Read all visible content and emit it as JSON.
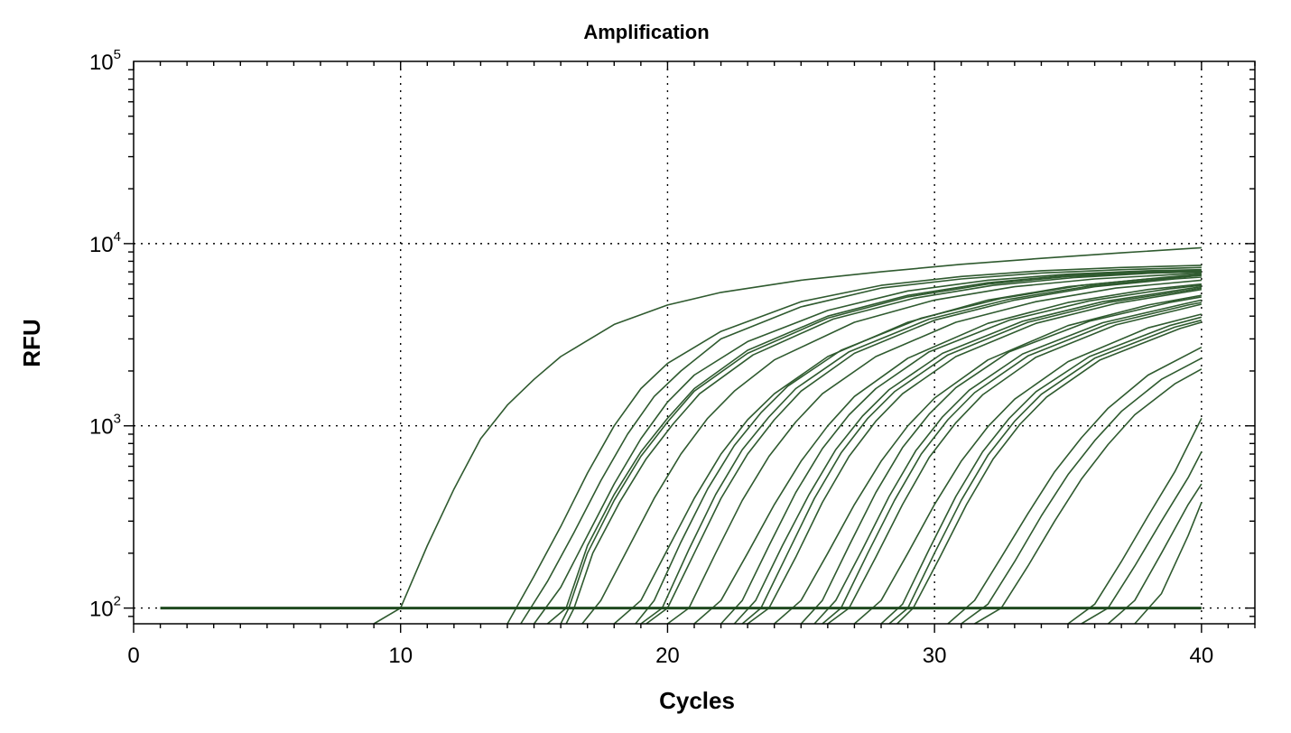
{
  "chart_data": {
    "type": "line",
    "title": "Amplification",
    "xlabel": "Cycles",
    "ylabel": "RFU",
    "xlim": [
      0,
      42
    ],
    "ylim": [
      82,
      100000
    ],
    "yscale": "log",
    "xticks": [
      "0",
      "10",
      "20",
      "30",
      "40"
    ],
    "yticks": [
      {
        "base": "10",
        "exp": "2",
        "value": 100
      },
      {
        "base": "10",
        "exp": "3",
        "value": 1000
      },
      {
        "base": "10",
        "exp": "4",
        "value": 10000
      },
      {
        "base": "10",
        "exp": "5",
        "value": 100000
      }
    ],
    "grid": true,
    "grid_x": [
      10,
      20,
      30,
      40
    ],
    "grid_y": [
      100,
      1000,
      10000
    ],
    "line_color": "#2f5a2f",
    "threshold": {
      "value": 100,
      "x_start": 1,
      "x_end": 40,
      "color": "#1f4a1f"
    },
    "series_note": "",
    "series": [
      {
        "x": [
          9,
          10,
          11,
          12,
          13,
          14,
          15,
          16,
          18,
          20,
          22,
          25,
          28,
          31,
          34,
          37,
          40
        ],
        "values": [
          82,
          100,
          220,
          450,
          850,
          1300,
          1800,
          2400,
          3600,
          4600,
          5400,
          6300,
          7000,
          7700,
          8300,
          8900,
          9500
        ]
      },
      {
        "x": [
          14,
          15,
          16,
          17,
          18,
          19,
          20,
          22,
          25,
          28,
          31,
          34,
          37,
          40
        ],
        "values": [
          82,
          150,
          280,
          550,
          1000,
          1600,
          2200,
          3300,
          4800,
          5900,
          6600,
          7100,
          7400,
          7600
        ]
      },
      {
        "x": [
          14.5,
          15.5,
          16.5,
          17.5,
          18.5,
          19.5,
          20.5,
          22,
          25,
          28,
          31,
          34,
          37,
          40
        ],
        "values": [
          82,
          140,
          260,
          500,
          900,
          1450,
          2000,
          3000,
          4500,
          5700,
          6400,
          6900,
          7200,
          7400
        ]
      },
      {
        "x": [
          15,
          16,
          17,
          18,
          19,
          20,
          21,
          23,
          26,
          29,
          32,
          35,
          38,
          40
        ],
        "values": [
          82,
          130,
          250,
          480,
          850,
          1350,
          1900,
          2900,
          4300,
          5500,
          6300,
          6800,
          7100,
          7200
        ]
      },
      {
        "x": [
          15.5,
          16.2,
          17,
          18,
          19,
          20,
          21,
          23,
          26,
          29,
          32,
          35,
          38,
          40
        ],
        "values": [
          82,
          100,
          220,
          420,
          720,
          1100,
          1600,
          2600,
          4000,
          5200,
          6100,
          6700,
          7000,
          7100
        ]
      },
      {
        "x": [
          16,
          16.3,
          17,
          18,
          19,
          20,
          21,
          23,
          26,
          29,
          32,
          35,
          38,
          40
        ],
        "values": [
          82,
          100,
          200,
          390,
          680,
          1050,
          1550,
          2500,
          3900,
          5100,
          6000,
          6600,
          6900,
          7000
        ]
      },
      {
        "x": [
          16.2,
          16.5,
          17.2,
          18.2,
          19.2,
          20.2,
          21.2,
          23.2,
          26.2,
          29.2,
          32.2,
          35.2,
          38.2,
          40
        ],
        "values": [
          82,
          100,
          200,
          380,
          660,
          1020,
          1500,
          2450,
          3850,
          5000,
          5900,
          6500,
          6900,
          7000
        ]
      },
      {
        "x": [
          16.8,
          17.5,
          18.5,
          19.5,
          20.5,
          21.5,
          22.5,
          24,
          27,
          30,
          33,
          36,
          40
        ],
        "values": [
          82,
          110,
          210,
          400,
          700,
          1100,
          1550,
          2300,
          3700,
          4900,
          5800,
          6400,
          6900
        ]
      },
      {
        "x": [
          18,
          19,
          20,
          21,
          22,
          23,
          24,
          26,
          29,
          32,
          35,
          38,
          40
        ],
        "values": [
          82,
          110,
          210,
          400,
          700,
          1080,
          1500,
          2400,
          3700,
          4900,
          5800,
          6400,
          6700
        ]
      },
      {
        "x": [
          18.8,
          19.5,
          20.5,
          21.5,
          22.5,
          23.5,
          24.5,
          26.5,
          29.5,
          32.5,
          35.5,
          38.5,
          40
        ],
        "values": [
          82,
          110,
          230,
          450,
          780,
          1180,
          1650,
          2600,
          3900,
          5000,
          5900,
          6500,
          6800
        ]
      },
      {
        "x": [
          19,
          19.8,
          20.8,
          21.8,
          22.8,
          23.8,
          24.8,
          26.8,
          29.8,
          32.8,
          35.8,
          38.8,
          40
        ],
        "values": [
          82,
          100,
          210,
          420,
          740,
          1120,
          1600,
          2550,
          3850,
          4950,
          5850,
          6450,
          6700
        ]
      },
      {
        "x": [
          19.2,
          20,
          21,
          22,
          23,
          24,
          25,
          27,
          30,
          33,
          36,
          39,
          40
        ],
        "values": [
          82,
          100,
          200,
          400,
          700,
          1080,
          1550,
          2500,
          3800,
          4900,
          5800,
          6400,
          6550
        ]
      },
      {
        "x": [
          20,
          20.8,
          21.8,
          22.8,
          23.8,
          24.8,
          25.8,
          27.8,
          30.8,
          33.8,
          36.8,
          40
        ],
        "values": [
          82,
          100,
          200,
          390,
          680,
          1050,
          1500,
          2400,
          3700,
          4800,
          5700,
          6300
        ]
      },
      {
        "x": [
          21,
          22,
          23,
          24,
          25,
          26,
          27,
          29,
          32,
          35,
          38,
          40
        ],
        "values": [
          82,
          110,
          200,
          370,
          640,
          1000,
          1450,
          2350,
          3650,
          4750,
          5600,
          6000
        ]
      },
      {
        "x": [
          22,
          22.8,
          23.8,
          24.8,
          25.8,
          26.8,
          27.8,
          29.8,
          32.8,
          35.8,
          38.8,
          40
        ],
        "values": [
          82,
          110,
          220,
          430,
          750,
          1150,
          1600,
          2550,
          3800,
          4850,
          5650,
          5900
        ]
      },
      {
        "x": [
          22.5,
          23.3,
          24.3,
          25.3,
          26.3,
          27.3,
          28.3,
          30.3,
          33.3,
          36.3,
          39.3,
          40
        ],
        "values": [
          82,
          110,
          220,
          420,
          740,
          1130,
          1580,
          2500,
          3750,
          4800,
          5600,
          5800
        ]
      },
      {
        "x": [
          22.8,
          23.5,
          24.5,
          25.5,
          26.5,
          27.5,
          28.5,
          30.5,
          33.5,
          36.5,
          39.5,
          40
        ],
        "values": [
          82,
          100,
          200,
          400,
          710,
          1100,
          1540,
          2450,
          3700,
          4750,
          5550,
          5700
        ]
      },
      {
        "x": [
          23,
          23.8,
          24.8,
          25.8,
          26.8,
          27.8,
          28.8,
          30.8,
          33.8,
          36.8,
          40
        ],
        "values": [
          82,
          100,
          190,
          380,
          680,
          1060,
          1500,
          2400,
          3650,
          4700,
          5600
        ]
      },
      {
        "x": [
          24,
          25,
          26,
          27,
          28,
          29,
          30,
          32,
          35,
          38,
          40
        ],
        "values": [
          82,
          110,
          200,
          370,
          640,
          1000,
          1420,
          2300,
          3550,
          4600,
          5200
        ]
      },
      {
        "x": [
          25,
          25.8,
          26.8,
          27.8,
          28.8,
          29.8,
          30.8,
          32.8,
          35.8,
          38.8,
          40
        ],
        "values": [
          82,
          110,
          220,
          430,
          760,
          1160,
          1620,
          2550,
          3750,
          4750,
          5100
        ]
      },
      {
        "x": [
          25.5,
          26.3,
          27.3,
          28.3,
          29.3,
          30.3,
          31.3,
          33.3,
          36.3,
          39.3,
          40
        ],
        "values": [
          82,
          110,
          210,
          410,
          730,
          1120,
          1570,
          2480,
          3680,
          4650,
          4900
        ]
      },
      {
        "x": [
          25.8,
          26.5,
          27.5,
          28.5,
          29.5,
          30.5,
          31.5,
          33.5,
          36.5,
          39.5,
          40
        ],
        "values": [
          82,
          100,
          200,
          390,
          700,
          1080,
          1520,
          2420,
          3620,
          4600,
          4750
        ]
      },
      {
        "x": [
          26,
          26.8,
          27.8,
          28.8,
          29.8,
          30.8,
          31.8,
          33.8,
          36.8,
          40
        ],
        "values": [
          82,
          100,
          190,
          370,
          670,
          1040,
          1480,
          2380,
          3580,
          4650
        ]
      },
      {
        "x": [
          27,
          28,
          29,
          30,
          31,
          32,
          33,
          35,
          38,
          40
        ],
        "values": [
          82,
          110,
          200,
          370,
          640,
          990,
          1400,
          2250,
          3450,
          4100
        ]
      },
      {
        "x": [
          28,
          28.8,
          29.8,
          30.8,
          31.8,
          32.8,
          33.8,
          35.8,
          38.8,
          40
        ],
        "values": [
          82,
          105,
          210,
          410,
          720,
          1100,
          1540,
          2400,
          3550,
          3950
        ]
      },
      {
        "x": [
          28.3,
          29,
          30,
          31,
          32,
          33,
          34,
          36,
          39,
          40
        ],
        "values": [
          82,
          100,
          200,
          390,
          690,
          1060,
          1490,
          2350,
          3480,
          3800
        ]
      },
      {
        "x": [
          28.6,
          29.2,
          30.2,
          31.2,
          32.2,
          33.2,
          34.2,
          36.2,
          39.2,
          40
        ],
        "values": [
          82,
          100,
          190,
          370,
          660,
          1020,
          1440,
          2300,
          3420,
          3700
        ]
      },
      {
        "x": [
          30.5,
          31.5,
          32.5,
          33.5,
          34.5,
          35.5,
          36.5,
          38,
          40
        ],
        "values": [
          82,
          110,
          190,
          330,
          560,
          860,
          1250,
          1900,
          2700
        ]
      },
      {
        "x": [
          31,
          32,
          33,
          34,
          35,
          36,
          37,
          38.5,
          40
        ],
        "values": [
          82,
          105,
          180,
          320,
          540,
          830,
          1200,
          1800,
          2350
        ]
      },
      {
        "x": [
          31.5,
          32.5,
          33.5,
          34.5,
          35.5,
          36.5,
          37.5,
          39,
          40
        ],
        "values": [
          82,
          100,
          170,
          300,
          510,
          790,
          1150,
          1700,
          2050
        ]
      },
      {
        "x": [
          35,
          36,
          37,
          38,
          39,
          40
        ],
        "values": [
          82,
          105,
          180,
          320,
          560,
          1100
        ]
      },
      {
        "x": [
          35.5,
          36.5,
          37.5,
          38.5,
          39.5,
          40
        ],
        "values": [
          82,
          100,
          170,
          300,
          520,
          720
        ]
      },
      {
        "x": [
          36.5,
          37.5,
          38.5,
          39.5,
          40
        ],
        "values": [
          82,
          110,
          200,
          370,
          480
        ]
      },
      {
        "x": [
          37.5,
          38.5,
          39.5,
          40
        ],
        "values": [
          82,
          120,
          250,
          380
        ]
      }
    ]
  }
}
